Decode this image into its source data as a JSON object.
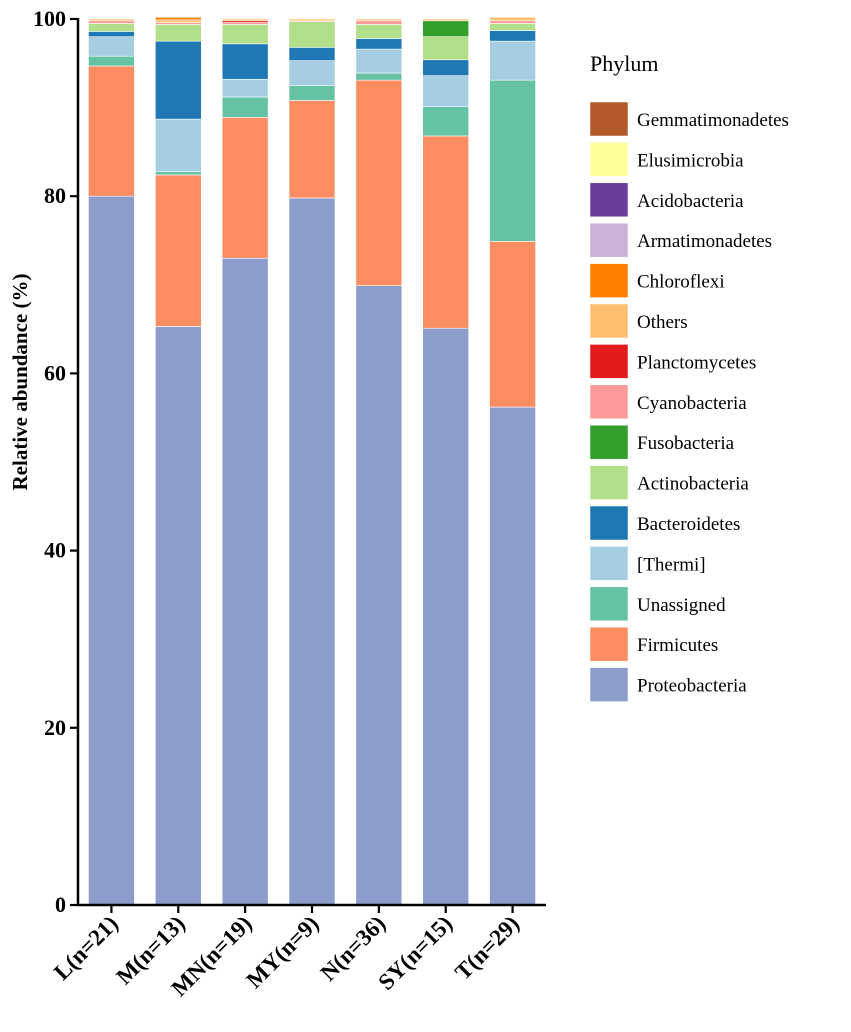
{
  "chart_data": {
    "type": "bar",
    "stacked": true,
    "ylabel": "Relative abundance (%)",
    "xlabel": "",
    "ylim": [
      0,
      100
    ],
    "yticks": [
      0,
      20,
      40,
      60,
      80,
      100
    ],
    "categories": [
      "L(n=21)",
      "M(n=13)",
      "MN(n=19)",
      "MY(n=9)",
      "N(n=36)",
      "SY(n=15)",
      "T(n=29)"
    ],
    "legend_title": "Phylum",
    "legend_position": "right",
    "series": [
      {
        "name": "Proteobacteria",
        "color": "#8d9dcb",
        "values": [
          80.0,
          65.3,
          73.0,
          79.8,
          69.9,
          65.1,
          56.2
        ]
      },
      {
        "name": "Firmicutes",
        "color": "#fc8d62",
        "values": [
          14.7,
          17.1,
          15.9,
          11.0,
          23.2,
          21.7,
          18.7
        ]
      },
      {
        "name": "Unassigned",
        "color": "#66c2a5",
        "values": [
          1.1,
          0.4,
          2.3,
          1.7,
          0.8,
          3.3,
          18.2
        ]
      },
      {
        "name": "[Thermi]",
        "color": "#a6cee3",
        "values": [
          2.2,
          5.9,
          2.0,
          2.8,
          2.7,
          3.5,
          4.4
        ]
      },
      {
        "name": "Bacteroidetes",
        "color": "#1f78b4",
        "values": [
          0.6,
          8.8,
          4.0,
          1.5,
          1.2,
          1.8,
          1.2
        ]
      },
      {
        "name": "Actinobacteria",
        "color": "#b2df8a",
        "values": [
          0.9,
          1.9,
          2.2,
          2.9,
          1.6,
          2.6,
          0.8
        ]
      },
      {
        "name": "Fusobacteria",
        "color": "#33a02c",
        "values": [
          0.0,
          0.0,
          0.0,
          0.0,
          0.0,
          1.8,
          0.0
        ]
      },
      {
        "name": "Cyanobacteria",
        "color": "#fb9a99",
        "values": [
          0.3,
          0.2,
          0.2,
          0.1,
          0.4,
          0.0,
          0.3
        ]
      },
      {
        "name": "Planctomycetes",
        "color": "#e31a1c",
        "values": [
          0.0,
          0.0,
          0.2,
          0.0,
          0.0,
          0.0,
          0.0
        ]
      },
      {
        "name": "Others",
        "color": "#fdbf6f",
        "values": [
          0.2,
          0.3,
          0.2,
          0.2,
          0.2,
          0.2,
          0.4
        ]
      },
      {
        "name": "Chloroflexi",
        "color": "#ff7f00",
        "values": [
          0.0,
          0.3,
          0.0,
          0.0,
          0.0,
          0.0,
          0.0
        ]
      },
      {
        "name": "Armatimonadetes",
        "color": "#cab2d6",
        "values": [
          0.0,
          0.0,
          0.0,
          0.0,
          0.0,
          0.0,
          0.0
        ]
      },
      {
        "name": "Acidobacteria",
        "color": "#6a3d9a",
        "values": [
          0.0,
          0.0,
          0.0,
          0.0,
          0.0,
          0.0,
          0.0
        ]
      },
      {
        "name": "Elusimicrobia",
        "color": "#ffff99",
        "values": [
          0.0,
          0.0,
          0.0,
          0.0,
          0.0,
          0.0,
          0.0
        ]
      },
      {
        "name": "Gemmatimonadetes",
        "color": "#b15928",
        "values": [
          0.0,
          0.0,
          0.0,
          0.0,
          0.0,
          0.0,
          0.0
        ]
      }
    ]
  }
}
